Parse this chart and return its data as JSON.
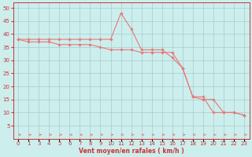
{
  "xlabel": "Vent moyen/en rafales ( km/h )",
  "bg_color": "#cceeed",
  "line_color": "#e87878",
  "marker_color": "#e87878",
  "grid_color": "#a8cccc",
  "axis_color": "#cc3333",
  "x_positions": [
    0,
    1,
    2,
    3,
    4,
    5,
    6,
    7,
    8,
    9,
    10,
    11,
    12,
    13,
    14,
    15,
    16,
    17,
    18,
    19,
    20,
    21,
    22
  ],
  "x_labels": [
    "0",
    "1",
    "3",
    "4",
    "5",
    "6",
    "7",
    "8",
    "9",
    "10",
    "11",
    "12",
    "13",
    "14",
    "15",
    "16",
    "17",
    "18",
    "19",
    "20",
    "21",
    "22",
    "23"
  ],
  "y_values_line1": [
    38,
    38,
    38,
    38,
    38,
    38,
    38,
    38,
    38,
    38,
    48,
    42,
    34,
    34,
    34,
    31,
    27,
    16,
    16,
    10,
    10,
    10,
    9
  ],
  "y_values_line2": [
    38,
    37,
    37,
    37,
    36,
    36,
    36,
    36,
    35,
    34,
    34,
    34,
    33,
    33,
    33,
    33,
    27,
    16,
    15,
    15,
    10,
    10,
    9
  ],
  "ylim": [
    0,
    52
  ],
  "xlim": [
    -0.5,
    22.5
  ],
  "yticks": [
    5,
    10,
    15,
    20,
    25,
    30,
    35,
    40,
    45,
    50
  ],
  "label_fontsize": 5.5,
  "tick_fontsize": 5.0
}
